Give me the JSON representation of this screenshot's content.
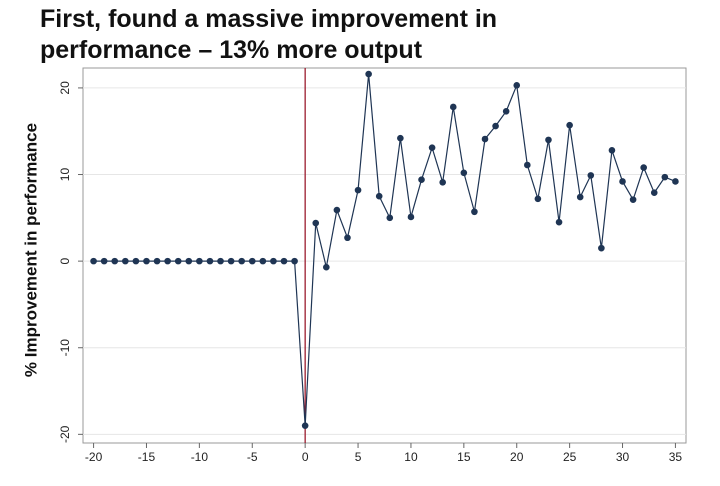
{
  "chart_data": {
    "type": "line",
    "title": "First, found a massive improvement in performance – 13% more output",
    "ylabel": "% Improvement in performance",
    "x": [
      -20,
      -19,
      -18,
      -17,
      -16,
      -15,
      -14,
      -13,
      -12,
      -11,
      -10,
      -9,
      -8,
      -7,
      -6,
      -5,
      -4,
      -3,
      -2,
      -1,
      0,
      1,
      2,
      3,
      4,
      5,
      6,
      7,
      8,
      9,
      10,
      11,
      12,
      13,
      14,
      15,
      16,
      17,
      18,
      19,
      20,
      21,
      22,
      23,
      24,
      25,
      26,
      27,
      28,
      29,
      30,
      31,
      32,
      33,
      34,
      35
    ],
    "series": [
      {
        "name": "Improvement",
        "color": "#1f3554",
        "values": [
          0,
          0,
          0,
          0,
          0,
          0,
          0,
          0,
          0,
          0,
          0,
          0,
          0,
          0,
          0,
          0,
          0,
          0,
          0,
          0,
          -19,
          4.4,
          -0.7,
          5.9,
          2.7,
          8.2,
          21.6,
          7.5,
          5.0,
          14.2,
          5.1,
          9.4,
          13.1,
          9.1,
          17.8,
          10.2,
          5.7,
          14.1,
          15.6,
          17.3,
          20.3,
          11.1,
          7.2,
          14.0,
          4.5,
          15.7,
          7.4,
          9.9,
          1.5,
          12.8,
          9.2,
          7.1,
          10.8,
          7.9,
          9.7,
          9.2
        ]
      }
    ],
    "vline": 0,
    "vline_color": "#9b1c2e",
    "xlim": [
      -21,
      36
    ],
    "ylim": [
      -21,
      22.3
    ],
    "xticks": [
      -20,
      -15,
      -10,
      -5,
      0,
      5,
      10,
      15,
      20,
      25,
      30,
      35
    ],
    "yticks": [
      -20,
      -10,
      0,
      10,
      20
    ],
    "grid": true
  }
}
